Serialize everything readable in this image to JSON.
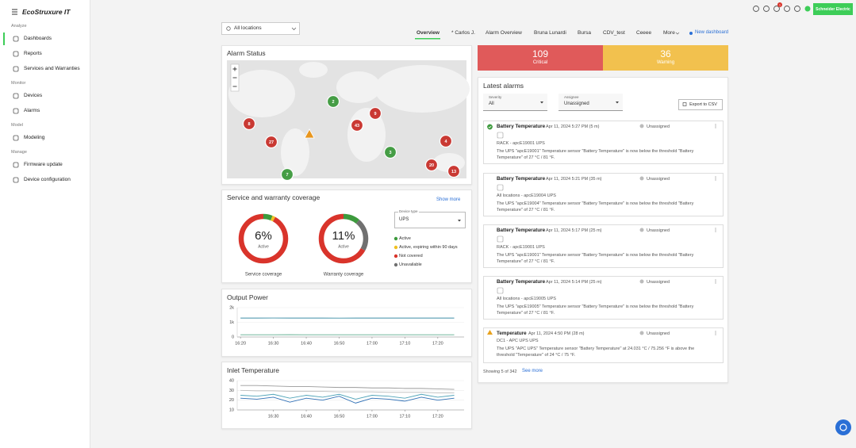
{
  "sidebar": {
    "logo": "EcoStruxure IT",
    "sections": [
      {
        "title": "Analyze",
        "items": [
          "Dashboards",
          "Reports",
          "Services and Warranties"
        ]
      },
      {
        "title": "Monitor",
        "items": [
          "Devices",
          "Alarms"
        ]
      },
      {
        "title": "Model",
        "items": [
          "Modeling"
        ]
      },
      {
        "title": "Manage",
        "items": [
          "Firmware update",
          "Device configuration"
        ]
      }
    ]
  },
  "topbar": {
    "notifications": 1,
    "brand": "Schneider Electric"
  },
  "filter": "All locations",
  "tabs": [
    "Overview",
    "* Carlos J.",
    "Alarm Overview",
    "Bruna Lunardi",
    "Bursa",
    "CDV_test",
    "Ceeee",
    "More"
  ],
  "new_dashboard": "New dashboard",
  "alarm_status": {
    "title": "Alarm Status",
    "clusters": [
      {
        "count": 2,
        "color": "#3d9a3d"
      },
      {
        "count": 9,
        "color": "#c8302a"
      },
      {
        "count": 8,
        "color": "#c8302a"
      },
      {
        "count": 43,
        "color": "#c8302a"
      },
      {
        "count": 27,
        "color": "#c8302a"
      },
      {
        "count": 3,
        "color": "#3d9a3d"
      },
      {
        "count": 4,
        "color": "#c8302a"
      },
      {
        "count": 20,
        "color": "#c8302a"
      },
      {
        "count": 13,
        "color": "#c8302a"
      },
      {
        "count": 7,
        "color": "#3d9a3d"
      }
    ]
  },
  "coverage": {
    "title": "Service and warranty coverage",
    "show_more": "Show more",
    "device_type_label": "Device type",
    "device_type": "UPS",
    "gauges": [
      {
        "value": 6,
        "value_label": "6%",
        "color": "#3d9a3d",
        "sublabel": "Active",
        "caption": "Service coverage",
        "rest": [
          {
            "value": 2,
            "color": "#f0c020"
          },
          {
            "value": 92,
            "color": "#d9342b"
          }
        ]
      },
      {
        "value": 11,
        "value_label": "11%",
        "color": "#3d9a3d",
        "sublabel": "Active",
        "caption": "Warranty coverage",
        "rest": [
          {
            "value": 22,
            "color": "#707070"
          },
          {
            "value": 67,
            "color": "#d9342b"
          }
        ]
      }
    ],
    "legend": [
      {
        "label": "Active",
        "color": "#3d9a3d"
      },
      {
        "label": "Active, expiring within 90 days",
        "color": "#f0c020"
      },
      {
        "label": "Not covered",
        "color": "#d9342b"
      },
      {
        "label": "Unavailable",
        "color": "#707070"
      }
    ]
  },
  "chart_data": [
    {
      "type": "line",
      "title": "Output Power",
      "x": [
        "16:20",
        "16:25",
        "16:30",
        "16:35",
        "16:40",
        "16:45",
        "16:50",
        "16:55",
        "17:00",
        "17:05",
        "17:10",
        "17:15",
        "17:20",
        "17:25"
      ],
      "xlim": [
        "16:19",
        "17:28"
      ],
      "xticks": [
        "16:20",
        "16:30",
        "16:40",
        "16:50",
        "17:00",
        "17:10",
        "17:20"
      ],
      "ylim": [
        0,
        2000
      ],
      "yticks": [
        0,
        {
          "value": 1000,
          "label": "1k"
        },
        {
          "value": 2000,
          "label": "2k"
        }
      ],
      "series": [
        {
          "color": "#3f8fa6",
          "values": [
            1290,
            1290,
            1295,
            1290,
            1290,
            1290,
            1285,
            1290,
            1290,
            1290,
            1290,
            1290,
            1290,
            1290
          ]
        },
        {
          "color": "#5fae8f",
          "values": [
            150,
            150,
            150,
            155,
            150,
            150,
            150,
            150,
            150,
            150,
            150,
            150,
            150,
            150
          ]
        }
      ]
    },
    {
      "type": "line",
      "title": "Inlet Temperature",
      "x": [
        "16:20",
        "16:25",
        "16:30",
        "16:35",
        "16:40",
        "16:45",
        "16:50",
        "16:55",
        "17:00",
        "17:05",
        "17:10",
        "17:15",
        "17:20",
        "17:25"
      ],
      "xlim": [
        "16:19",
        "17:28"
      ],
      "xticks": [
        "16:30",
        "16:40",
        "16:50",
        "17:00",
        "17:10",
        "17:20"
      ],
      "ylim": [
        10,
        40
      ],
      "yticks": [
        10,
        20,
        30,
        40
      ],
      "series": [
        {
          "color": "#9a9a9a",
          "values": [
            35,
            35,
            34.5,
            34,
            34,
            33.5,
            33,
            33,
            32.5,
            32.5,
            32,
            32,
            31.5,
            31
          ]
        },
        {
          "color": "#bdbdbd",
          "values": [
            30,
            29.5,
            29.5,
            29,
            29,
            29,
            28.5,
            28.5,
            28.5,
            28,
            28,
            28,
            27.5,
            27.5
          ]
        },
        {
          "color": "#4fa3b8",
          "values": [
            25,
            24,
            26,
            22,
            25,
            23,
            26,
            21,
            25,
            24,
            22,
            26,
            23,
            25
          ]
        },
        {
          "color": "#2f6fb5",
          "values": [
            22,
            21,
            23,
            18,
            22,
            20,
            24,
            17,
            22,
            21,
            19,
            23,
            20,
            22
          ]
        }
      ]
    }
  ],
  "summary": [
    {
      "value": 109,
      "label": "Critical",
      "color": "#e05a5a"
    },
    {
      "value": 36,
      "label": "Warning",
      "color": "#f2c14e"
    }
  ],
  "latest_alarms": {
    "title": "Latest alarms",
    "severity_label": "Severity",
    "severity": "All",
    "assignee_label": "Assignee",
    "assignee": "Unassigned",
    "export": "Export to CSV",
    "items": [
      {
        "status": "ok",
        "title": "Battery Temperature",
        "date": "Apr 11, 2024 5:27 PM (5 m)",
        "assigned": "Unassigned",
        "location": "RACK - apcE19001 UPS",
        "message": "The UPS \"apcE19001\" Temperature sensor \"Battery Temperature\" is now below the threshold \"Battery Temperature\" of 27 °C / 81 °F."
      },
      {
        "status": "ok",
        "title": "Battery Temperature",
        "date": "Apr 11, 2024 5:21 PM (35 m)",
        "assigned": "Unassigned",
        "location": "All locations - apcE19004 UPS",
        "message": "The UPS \"apcE19004\" Temperature sensor \"Battery Temperature\" is now below the threshold \"Battery Temperature\" of 27 °C / 81 °F."
      },
      {
        "status": "ok",
        "title": "Battery Temperature",
        "date": "Apr 11, 2024 5:17 PM (25 m)",
        "assigned": "Unassigned",
        "location": "RACK - apcE19001 UPS",
        "message": "The UPS \"apcE19001\" Temperature sensor \"Battery Temperature\" is now below the threshold \"Battery Temperature\" of 27 °C / 81 °F."
      },
      {
        "status": "ok",
        "title": "Battery Temperature",
        "date": "Apr 11, 2024 5:14 PM (25 m)",
        "assigned": "Unassigned",
        "location": "All locations - apcE19005 UPS",
        "message": "The UPS \"apcE19005\" Temperature sensor \"Battery Temperature\" is now below the threshold \"Battery Temperature\" of 27 °C / 81 °F."
      },
      {
        "status": "warning",
        "title": "Temperature",
        "date": "Apr 11, 2024 4:50 PM (28 m)",
        "assigned": "Unassigned",
        "location": "DC1 - APC UPS UPS",
        "message": "The UPS \"APC UPS\" Temperature sensor \"Battery Temperature\" at 24.031 °C / 75.256 °F is above the threshold \"Temperature\" of 24 °C / 75 °F."
      }
    ],
    "showing": "Showing 5 of 342",
    "see_more": "See more"
  }
}
